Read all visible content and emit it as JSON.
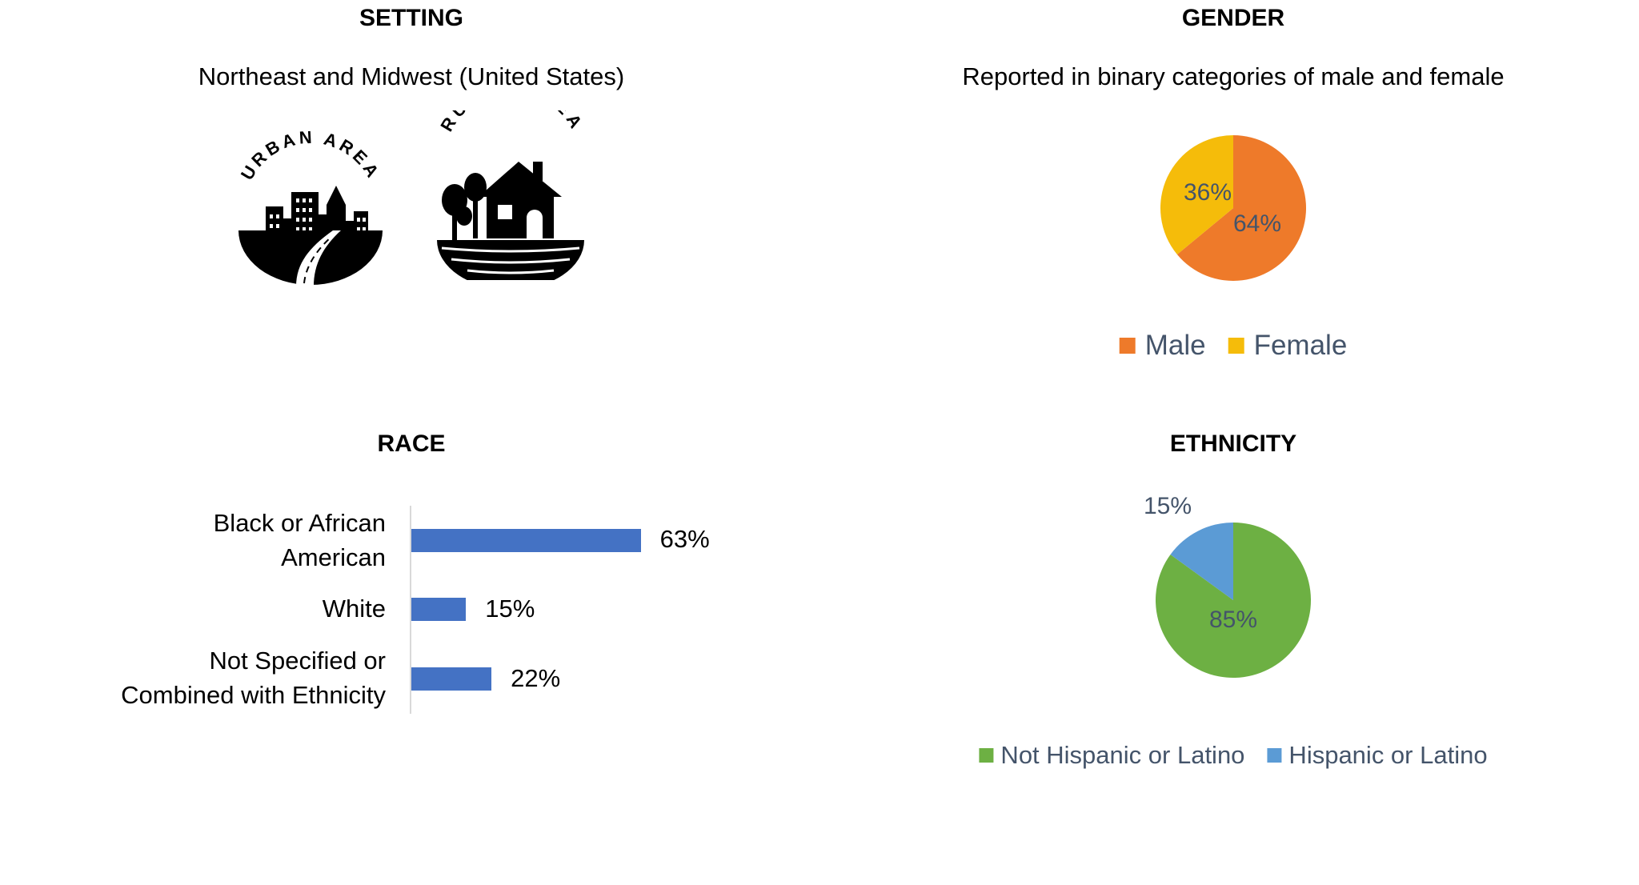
{
  "setting": {
    "heading": "SETTING",
    "subtitle": "Northeast and Midwest (United States)",
    "urban_label": "URBAN AREA",
    "rural_label": "RURAL AREA"
  },
  "chart_data": [
    {
      "type": "pie",
      "title": "GENDER",
      "subtitle": "Reported in binary categories of male and female",
      "legend": "bottom",
      "slices": [
        {
          "label": "Male",
          "value": 64,
          "display": "64%",
          "color": "#ee7a2a"
        },
        {
          "label": "Female",
          "value": 36,
          "display": "36%",
          "color": "#f5bc0a"
        }
      ]
    },
    {
      "type": "bar",
      "orientation": "horizontal",
      "title": "RACE",
      "categories": [
        "Black or African American",
        "White",
        "Not Specified or Combined with Ethnicity"
      ],
      "category_lines": [
        [
          "Black or African",
          "American"
        ],
        [
          "White"
        ],
        [
          "Not Specified or",
          "Combined with Ethnicity"
        ]
      ],
      "values": [
        63,
        15,
        22
      ],
      "display": [
        "63%",
        "15%",
        "22%"
      ],
      "color": "#4472c4"
    },
    {
      "type": "pie",
      "title": "ETHNICITY",
      "legend": "bottom",
      "slices": [
        {
          "label": "Not Hispanic or Latino",
          "value": 85,
          "display": "85%",
          "color": "#6db043"
        },
        {
          "label": "Hispanic or Latino",
          "value": 15,
          "display": "15%",
          "color": "#5b9bd5"
        }
      ]
    }
  ]
}
